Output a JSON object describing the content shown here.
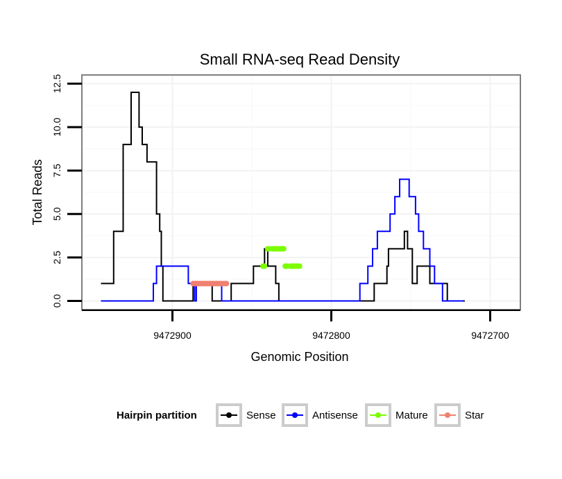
{
  "chart_data": {
    "type": "line",
    "title": "Small RNA-seq Read Density",
    "xlabel": "Genomic Position",
    "ylabel": "Total Reads",
    "xlim": [
      9472957,
      9472681
    ],
    "ylim": [
      -0.5,
      13
    ],
    "x_reversed": true,
    "x_ticks": [
      9472900,
      9472800,
      9472700
    ],
    "x_tick_labels": [
      "9472900",
      "9472800",
      "9472700"
    ],
    "y_ticks": [
      0,
      2.5,
      5,
      7.5,
      10,
      12.5
    ],
    "y_tick_labels": [
      "0.0",
      "2.5",
      "5.0",
      "7.5",
      "10.0",
      "12.5"
    ],
    "grid": true,
    "legend": {
      "title": "Hairpin partition",
      "position": "bottom",
      "entries": [
        "Sense",
        "Antisense",
        "Mature",
        "Star"
      ]
    },
    "series": [
      {
        "name": "Sense",
        "color": "#000000",
        "style": "line",
        "x": [
          9472945,
          9472937,
          9472937,
          9472931,
          9472931,
          9472926,
          9472926,
          9472925,
          9472925,
          9472924,
          9472924,
          9472923,
          9472923,
          9472921,
          9472921,
          9472919,
          9472919,
          9472917,
          9472917,
          9472916,
          9472916,
          9472910,
          9472910,
          9472908,
          9472908,
          9472907,
          9472907,
          9472906,
          9472906,
          9472904,
          9472904,
          9472887,
          9472887,
          9472875,
          9472875,
          9472863,
          9472863,
          9472849,
          9472849,
          9472842,
          9472842,
          9472840,
          9472840,
          9472835,
          9472835,
          9472833,
          9472833,
          9472807,
          9472807,
          9472773,
          9472773,
          9472765,
          9472765,
          9472764,
          9472764,
          9472754,
          9472754,
          9472752,
          9472752,
          9472749,
          9472749,
          9472746,
          9472746,
          9472738,
          9472738,
          9472734,
          9472734,
          9472727,
          9472727,
          9472720,
          9472720,
          9472716,
          9472716
        ],
        "y": [
          1,
          1,
          4,
          4,
          9,
          9,
          12,
          12,
          12,
          12,
          12,
          12,
          12,
          12,
          10,
          10,
          9,
          9,
          9,
          9,
          8,
          8,
          5,
          5,
          4,
          4,
          2,
          2,
          0,
          0,
          0,
          0,
          1,
          1,
          0,
          0,
          1,
          1,
          2,
          2,
          3,
          3,
          2,
          2,
          1,
          1,
          0,
          0,
          0,
          0,
          1,
          1,
          2,
          2,
          3,
          3,
          4,
          4,
          3,
          3,
          1,
          1,
          2,
          2,
          1,
          1,
          1,
          1,
          0,
          0,
          0,
          0,
          0
        ]
      },
      {
        "name": "Antisense",
        "color": "#0000ff",
        "style": "line",
        "x": [
          9472945,
          9472912,
          9472912,
          9472910,
          9472910,
          9472908,
          9472908,
          9472890,
          9472890,
          9472886,
          9472886,
          9472885,
          9472885,
          9472882,
          9472882,
          9472869,
          9472869,
          9472864,
          9472864,
          9472859,
          9472859,
          9472812,
          9472812,
          9472782,
          9472782,
          9472777,
          9472777,
          9472774,
          9472774,
          9472771,
          9472771,
          9472763,
          9472763,
          9472760,
          9472760,
          9472757,
          9472757,
          9472755,
          9472755,
          9472751,
          9472751,
          9472747,
          9472747,
          9472745,
          9472745,
          9472742,
          9472742,
          9472738,
          9472738,
          9472735,
          9472735,
          9472733,
          9472733,
          9472730,
          9472730,
          9472729,
          9472729,
          9472727,
          9472727,
          9472725,
          9472725,
          9472723,
          9472723,
          9472721,
          9472721,
          9472717
        ],
        "y": [
          0,
          0,
          1,
          1,
          2,
          2,
          2,
          2,
          1,
          1,
          0,
          0,
          1,
          1,
          1,
          1,
          0,
          0,
          0,
          0,
          0,
          0,
          0,
          0,
          1,
          1,
          2,
          2,
          3,
          3,
          4,
          4,
          5,
          5,
          6,
          6,
          7,
          7,
          7,
          7,
          6,
          6,
          5,
          5,
          4,
          4,
          3,
          3,
          2,
          2,
          1,
          1,
          1,
          1,
          0,
          0,
          0,
          0,
          0,
          0,
          0,
          0,
          0,
          0,
          0,
          0
        ]
      },
      {
        "name": "Mature",
        "color": "#7cfc00",
        "style": "points",
        "x": [
          9472843,
          9472842,
          9472840,
          9472839,
          9472837,
          9472836,
          9472835,
          9472834,
          9472833,
          9472832,
          9472831,
          9472830,
          9472829,
          9472828,
          9472826,
          9472825,
          9472824,
          9472823,
          9472822,
          9472821,
          9472820
        ],
        "y": [
          2,
          2,
          3,
          3,
          3,
          3,
          3,
          3,
          3,
          3,
          3,
          3,
          2,
          2,
          2,
          2,
          2,
          2,
          2,
          2,
          2
        ]
      },
      {
        "name": "Star",
        "color": "#f08070",
        "style": "points",
        "x": [
          9472887,
          9472886,
          9472885,
          9472884,
          9472883,
          9472882,
          9472881,
          9472880,
          9472879,
          9472878,
          9472877,
          9472876,
          9472875,
          9472874,
          9472873,
          9472872,
          9472871,
          9472870,
          9472869,
          9472868,
          9472867,
          9472866
        ],
        "y": [
          1,
          1,
          1,
          1,
          1,
          1,
          1,
          1,
          1,
          1,
          1,
          1,
          1,
          1,
          1,
          1,
          1,
          1,
          1,
          1,
          1,
          1
        ]
      }
    ]
  }
}
